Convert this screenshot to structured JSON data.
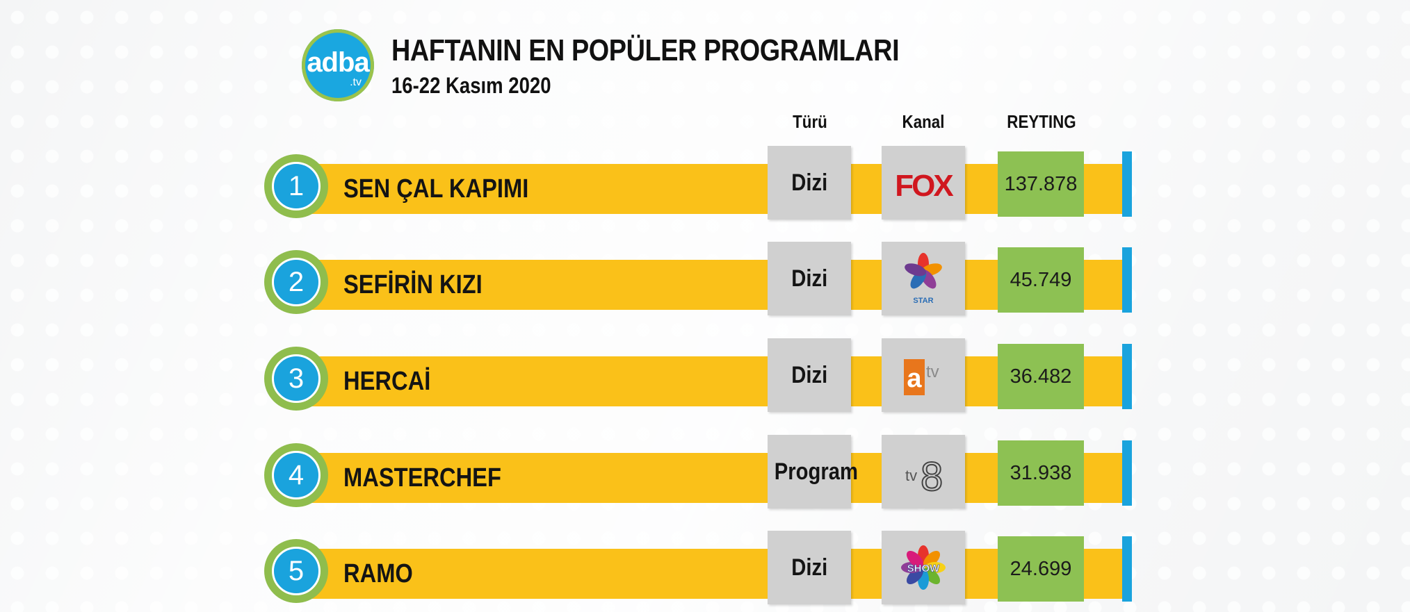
{
  "header": {
    "logo_main": "adba",
    "logo_sub": ".tv",
    "title": "HAFTANIN EN POPÜLER PROGRAMLARI",
    "subtitle": "16-22 Kasım 2020"
  },
  "columns": {
    "type": "Türü",
    "channel": "Kanal",
    "rating": "REYTING"
  },
  "colors": {
    "bar": "#fac119",
    "rank_ring": "#8fbd4d",
    "rank_fill": "#1aa3dd",
    "rating_box": "#8dc153",
    "type_box": "#d0d0d0",
    "edge": "#1aa3dd"
  },
  "chart_data": {
    "type": "table",
    "title": "HAFTANIN EN POPÜLER PROGRAMLARI",
    "subtitle": "16-22 Kasım 2020",
    "columns": [
      "Türü",
      "Kanal",
      "REYTING"
    ],
    "rows": [
      {
        "rank": "1",
        "name": "SEN ÇAL KAPIMI",
        "type": "Dizi",
        "channel_icon": "fox-logo-icon",
        "channel_text": "FOX",
        "rating": "137.878"
      },
      {
        "rank": "2",
        "name": "SEFİRİN KIZI",
        "type": "Dizi",
        "channel_icon": "star-tv-logo-icon",
        "channel_text": "STAR",
        "rating": "45.749"
      },
      {
        "rank": "3",
        "name": "HERCAİ",
        "type": "Dizi",
        "channel_icon": "atv-logo-icon",
        "channel_text": "atv",
        "rating": "36.482"
      },
      {
        "rank": "4",
        "name": "MASTERCHEF",
        "type": "Program",
        "channel_icon": "tv8-logo-icon",
        "channel_text": "tv8",
        "rating": "31.938"
      },
      {
        "rank": "5",
        "name": "RAMO",
        "type": "Dizi",
        "channel_icon": "show-tv-logo-icon",
        "channel_text": "SHOW",
        "rating": "24.699"
      }
    ]
  }
}
